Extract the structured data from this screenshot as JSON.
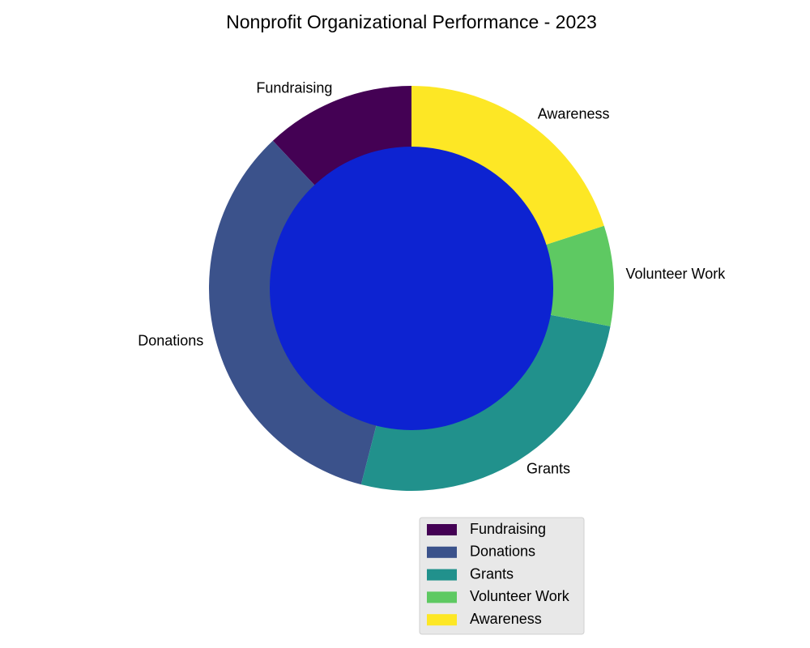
{
  "chart_data": {
    "type": "pie",
    "title": "Nonprofit Organizational Performance - 2023",
    "donut": true,
    "categories": [
      "Fundraising",
      "Donations",
      "Grants",
      "Volunteer Work",
      "Awareness"
    ],
    "values": [
      12,
      34,
      26,
      8,
      20
    ],
    "colors": [
      "#440154",
      "#3b528b",
      "#21918c",
      "#5ec962",
      "#fde725"
    ],
    "center_color": "#0d23d1",
    "start_angle_deg": 90,
    "direction": "counterclockwise",
    "legend": {
      "placement": "lower-right",
      "entries": [
        "Fundraising",
        "Donations",
        "Grants",
        "Volunteer Work",
        "Awareness"
      ]
    }
  }
}
